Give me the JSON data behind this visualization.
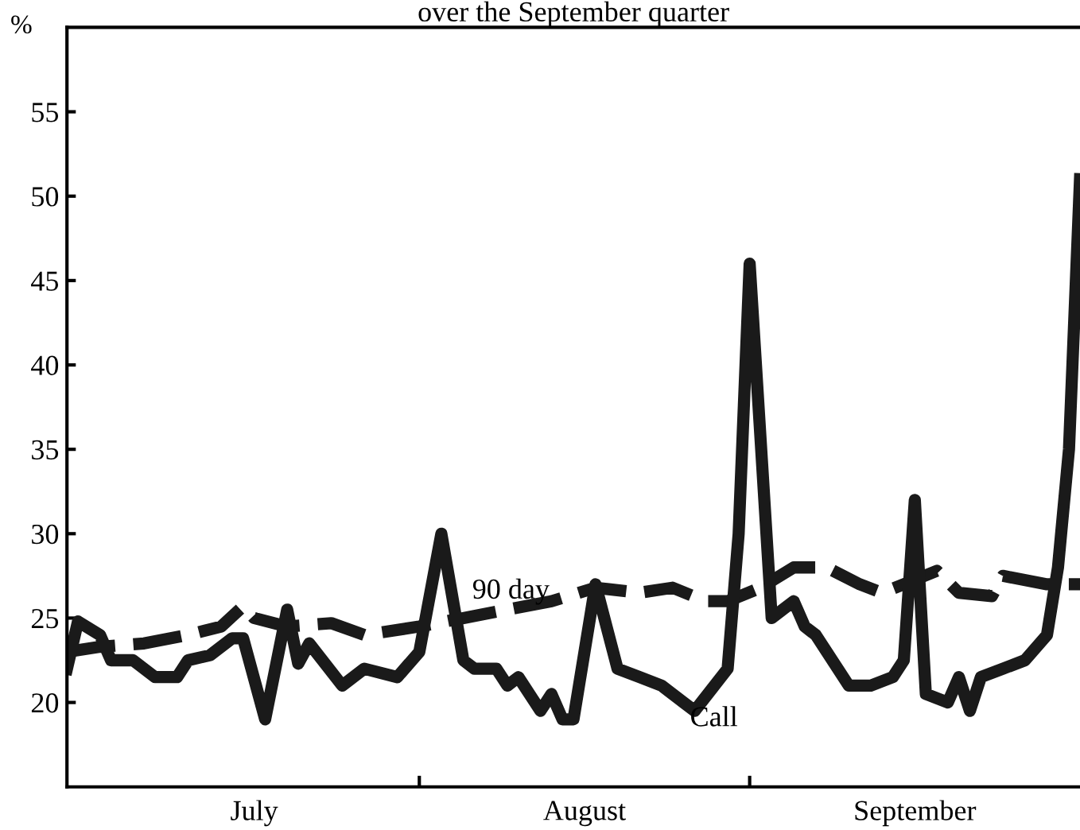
{
  "chart_data": {
    "type": "line",
    "title": "over the September quarter",
    "ylabel": "%",
    "categories": [
      null,
      null,
      null,
      null,
      null,
      null,
      null,
      null,
      null,
      null,
      null,
      null,
      null,
      null,
      null,
      null,
      null,
      "July",
      null,
      null,
      null,
      null,
      null,
      null,
      null,
      null,
      null,
      null,
      null,
      null,
      null,
      null,
      null,
      null,
      null,
      null,
      null,
      null,
      null,
      null,
      null,
      null,
      null,
      null,
      null,
      null,
      null,
      "August",
      null,
      null,
      null,
      null,
      null,
      null,
      null,
      null,
      null,
      null,
      null,
      null,
      null,
      null,
      null,
      null,
      null,
      null,
      null,
      null,
      null,
      null,
      null,
      null,
      null,
      null,
      null,
      null,
      null,
      "September",
      null,
      null,
      null,
      null,
      null,
      null,
      null,
      null,
      null,
      null,
      null,
      null,
      null,
      null,
      null
    ],
    "ylim": [
      15,
      60
    ],
    "yticks": [
      20,
      25,
      30,
      35,
      40,
      45,
      50,
      55
    ],
    "grid": false,
    "legend": false,
    "marker": "none",
    "series": [
      {
        "name": "90 day",
        "color": "#1a1a1a",
        "line_style": "dashed",
        "values": [
          23,
          null,
          null,
          23.3,
          null,
          null,
          null,
          23.5,
          null,
          null,
          null,
          24,
          null,
          null,
          24.5,
          null,
          25.7,
          25,
          null,
          null,
          24.5,
          null,
          null,
          null,
          24.7,
          null,
          null,
          24,
          null,
          null,
          null,
          null,
          24.5,
          null,
          null,
          null,
          25,
          null,
          null,
          null,
          25.5,
          null,
          null,
          null,
          26,
          null,
          null,
          null,
          26.8,
          null,
          null,
          null,
          26.5,
          null,
          null,
          26.8,
          null,
          null,
          26,
          null,
          26,
          null,
          null,
          26.8,
          null,
          null,
          28,
          null,
          null,
          28,
          null,
          null,
          27,
          null,
          26.5,
          null,
          27,
          null,
          null,
          27.8,
          null,
          26.5,
          null,
          null,
          26.3,
          27.5,
          null,
          null,
          null,
          27,
          null,
          null,
          27
        ]
      },
      {
        "name": "Call",
        "color": "#1a1a1a",
        "line_style": "solid",
        "values": [
          22,
          24.8,
          null,
          24,
          22.5,
          null,
          22.5,
          null,
          21.5,
          null,
          21.5,
          22.5,
          null,
          22.8,
          null,
          23.8,
          23.8,
          null,
          19,
          null,
          25.5,
          22.3,
          23.5,
          null,
          null,
          21,
          null,
          22,
          null,
          null,
          21.5,
          null,
          23,
          null,
          30,
          null,
          22.5,
          22,
          null,
          22,
          21,
          21.5,
          null,
          19.5,
          20.5,
          19,
          19,
          null,
          27,
          null,
          22,
          null,
          21.5,
          null,
          21,
          null,
          20,
          19.5,
          null,
          null,
          22,
          30,
          46,
          null,
          25,
          null,
          26,
          24.5,
          24,
          null,
          22,
          21,
          null,
          21,
          null,
          21.5,
          22.5,
          32,
          20.5,
          null,
          20,
          21.5,
          19.5,
          21.5,
          null,
          22,
          null,
          22.5,
          null,
          24,
          28,
          35,
          51
        ]
      }
    ]
  }
}
